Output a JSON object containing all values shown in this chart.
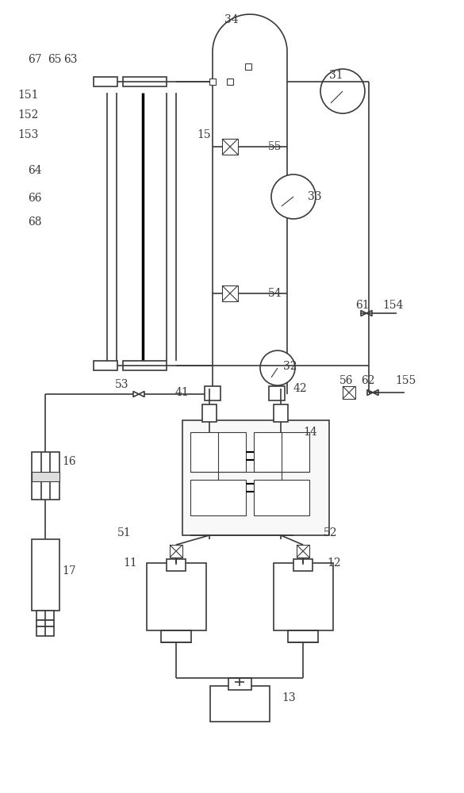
{
  "figsize": [
    5.85,
    10.0
  ],
  "dpi": 100,
  "bg_color": "#ffffff",
  "line_color": "#3a3a3a",
  "lw": 1.2,
  "thin_lw": 0.8
}
